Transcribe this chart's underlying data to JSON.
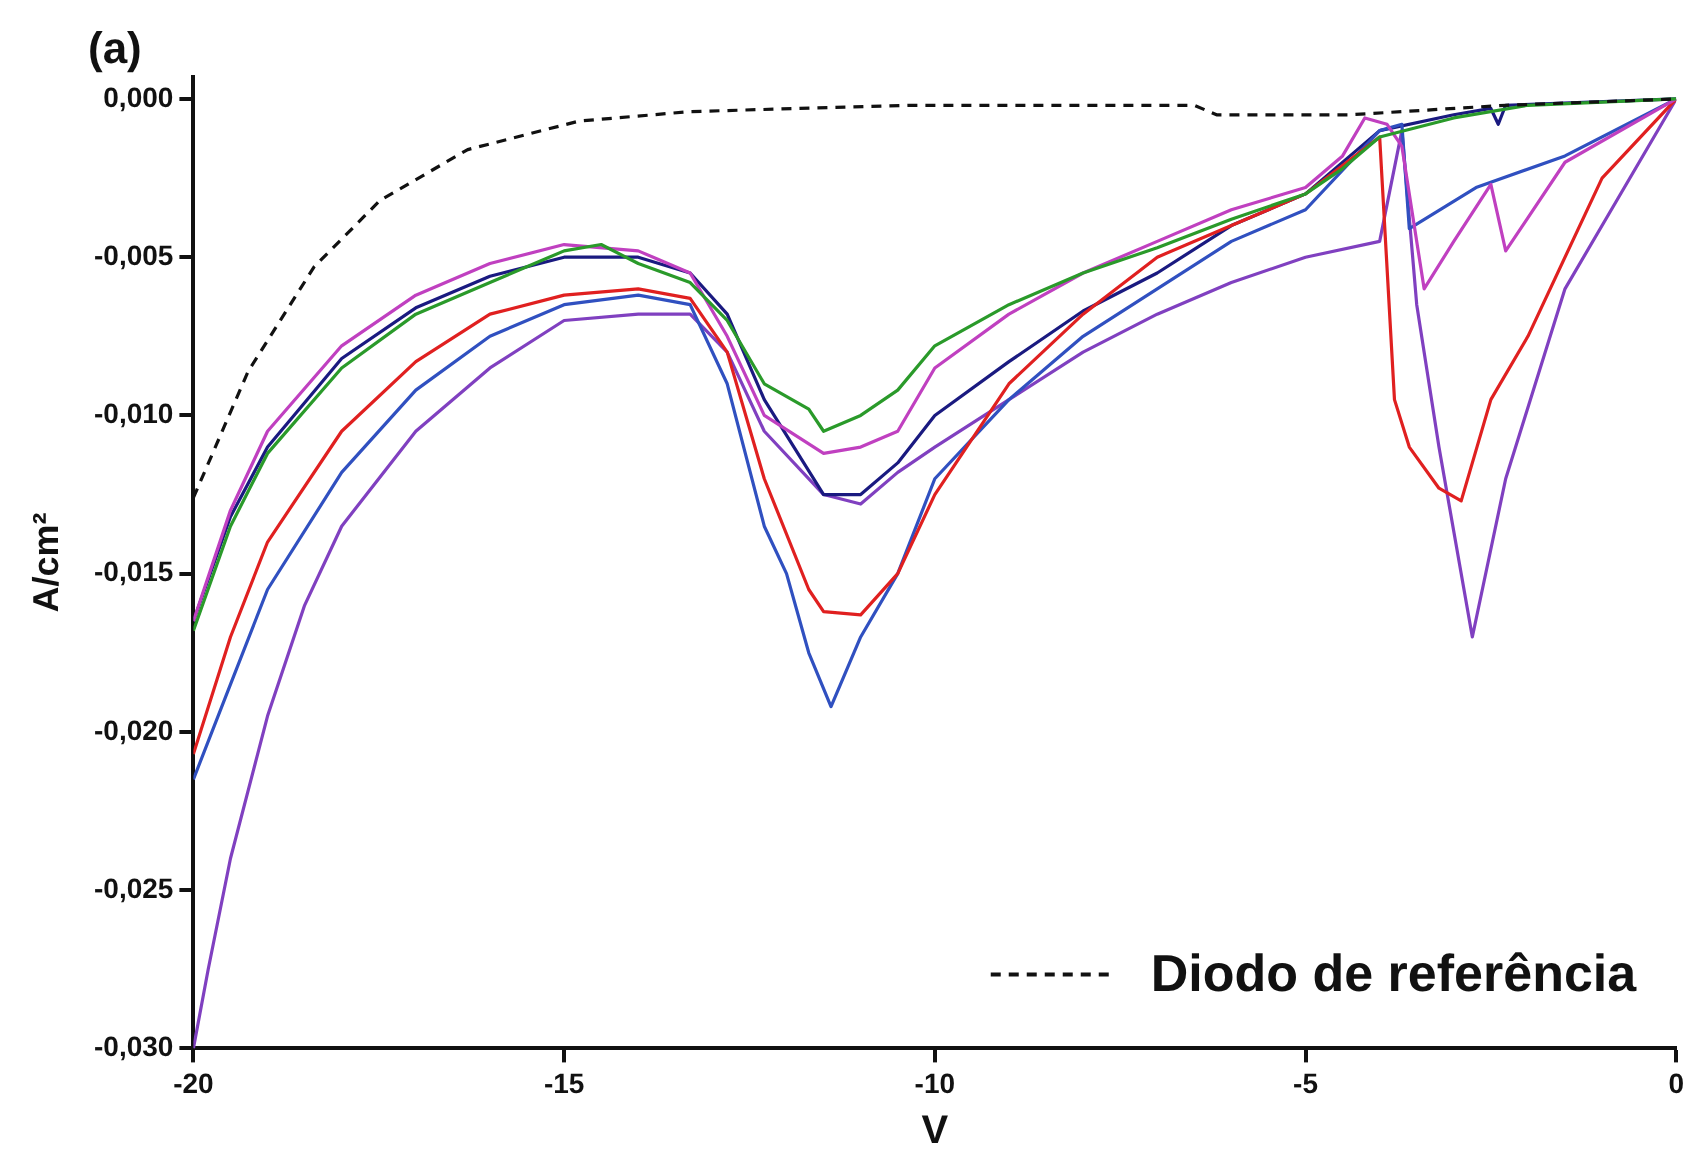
{
  "chart_data": {
    "type": "line",
    "title": "(a)",
    "xlabel": "V",
    "ylabel": "A/cm²",
    "xlim": [
      -20,
      0
    ],
    "ylim": [
      -0.03,
      0.0007
    ],
    "xticks": [
      -20,
      -15,
      -10,
      -5,
      0
    ],
    "yticks": [
      {
        "value": 0,
        "label": "0,000"
      },
      {
        "value": -0.005,
        "label": "-0,005"
      },
      {
        "value": -0.01,
        "label": "-0,010"
      },
      {
        "value": -0.015,
        "label": "-0,015"
      },
      {
        "value": -0.02,
        "label": "-0,020"
      },
      {
        "value": -0.025,
        "label": "-0,025"
      },
      {
        "value": -0.03,
        "label": "-0,030"
      }
    ],
    "grid": false,
    "legend": "bottom right",
    "marker": "none",
    "series": [
      {
        "name": "Diodo de referência",
        "color": "#111111",
        "line_style": "dashed",
        "x": [
          -20,
          -19.26,
          -18.37,
          -17.48,
          -16.3,
          -14.8,
          -13.3,
          -10.35,
          -6.5,
          -6.2,
          -4.4,
          -2.3,
          0
        ],
        "values": [
          -0.0126,
          -0.0086,
          -0.0053,
          -0.0032,
          -0.0016,
          -0.0007,
          -0.0004,
          -0.0002,
          -0.0002,
          -0.0005,
          -0.0005,
          -0.0002,
          0
        ]
      },
      {
        "color": "#2a9a2a",
        "x": [
          -20,
          -19.5,
          -19,
          -18,
          -17,
          -16,
          -15,
          -14.5,
          -14,
          -13.3,
          -12.8,
          -12.3,
          -11.7,
          -11.5,
          -11,
          -10.5,
          -10,
          -9,
          -8,
          -7,
          -6,
          -5,
          -4.5,
          -4,
          -3,
          -2,
          0
        ],
        "values": [
          -0.0168,
          -0.0135,
          -0.0112,
          -0.0085,
          -0.0068,
          -0.0058,
          -0.0048,
          -0.0046,
          -0.0052,
          -0.0058,
          -0.007,
          -0.009,
          -0.0098,
          -0.0105,
          -0.01,
          -0.0092,
          -0.0078,
          -0.0065,
          -0.0055,
          -0.0047,
          -0.0038,
          -0.003,
          -0.0022,
          -0.0012,
          -0.0006,
          -0.0002,
          0
        ]
      },
      {
        "color": "#c040c0",
        "x": [
          -20,
          -19.5,
          -19,
          -18,
          -17,
          -16,
          -15,
          -14,
          -13.3,
          -12.8,
          -12.3,
          -11.5,
          -11,
          -10.5,
          -10,
          -9,
          -8,
          -7,
          -6,
          -5,
          -4.5,
          -4.2,
          -3.9,
          -3.7,
          -3.4,
          -3,
          -2.5,
          -2.3,
          -1.5,
          0
        ],
        "values": [
          -0.0165,
          -0.013,
          -0.0105,
          -0.0078,
          -0.0062,
          -0.0052,
          -0.0046,
          -0.0048,
          -0.0055,
          -0.0075,
          -0.01,
          -0.0112,
          -0.011,
          -0.0105,
          -0.0085,
          -0.0068,
          -0.0055,
          -0.0045,
          -0.0035,
          -0.0028,
          -0.0018,
          -0.0006,
          -0.0008,
          -0.0015,
          -0.006,
          -0.0045,
          -0.0027,
          -0.0048,
          -0.002,
          0
        ]
      },
      {
        "color": "#e02020",
        "x": [
          -20,
          -19.5,
          -19,
          -18,
          -17,
          -16,
          -15,
          -14,
          -13.3,
          -12.8,
          -12.3,
          -11.7,
          -11.5,
          -11,
          -10.5,
          -10,
          -9,
          -8,
          -7,
          -6,
          -5,
          -4,
          -3.8,
          -3.6,
          -3.2,
          -2.9,
          -2.5,
          -2,
          -1,
          0
        ],
        "values": [
          -0.0207,
          -0.017,
          -0.014,
          -0.0105,
          -0.0083,
          -0.0068,
          -0.0062,
          -0.006,
          -0.0063,
          -0.008,
          -0.012,
          -0.0155,
          -0.0162,
          -0.0163,
          -0.015,
          -0.0125,
          -0.009,
          -0.0068,
          -0.005,
          -0.004,
          -0.003,
          -0.0012,
          -0.0095,
          -0.011,
          -0.0123,
          -0.0127,
          -0.0095,
          -0.0075,
          -0.0025,
          0
        ]
      },
      {
        "color": "#3050c0",
        "x": [
          -20,
          -19.5,
          -19,
          -18,
          -17,
          -16,
          -15,
          -14,
          -13.3,
          -12.8,
          -12.3,
          -12,
          -11.7,
          -11.4,
          -11,
          -10.5,
          -10,
          -9,
          -8,
          -7,
          -6,
          -5,
          -4,
          -3.7,
          -3.6,
          -2.7,
          -1.5,
          0
        ],
        "values": [
          -0.0215,
          -0.0185,
          -0.0155,
          -0.0118,
          -0.0092,
          -0.0075,
          -0.0065,
          -0.0062,
          -0.0065,
          -0.009,
          -0.0135,
          -0.015,
          -0.0175,
          -0.0192,
          -0.017,
          -0.015,
          -0.012,
          -0.0095,
          -0.0075,
          -0.006,
          -0.0045,
          -0.0035,
          -0.001,
          -0.0008,
          -0.0041,
          -0.0028,
          -0.0018,
          0
        ]
      },
      {
        "color": "#1a1a80",
        "x": [
          -20,
          -19.5,
          -19,
          -18,
          -17,
          -16,
          -15,
          -14,
          -13.3,
          -12.8,
          -12.3,
          -11.5,
          -11,
          -10.5,
          -10,
          -9,
          -8,
          -7,
          -6,
          -5,
          -4,
          -3,
          -2.5,
          -2.4,
          -2.3,
          0
        ],
        "values": [
          -0.0165,
          -0.0132,
          -0.011,
          -0.0082,
          -0.0066,
          -0.0056,
          -0.005,
          -0.005,
          -0.0055,
          -0.0068,
          -0.0095,
          -0.0125,
          -0.0125,
          -0.0115,
          -0.01,
          -0.0083,
          -0.0067,
          -0.0055,
          -0.004,
          -0.003,
          -0.001,
          -0.0005,
          -0.0003,
          -0.0008,
          -0.0002,
          0
        ]
      },
      {
        "color": "#8040c0",
        "x": [
          -20,
          -19.8,
          -19.5,
          -19,
          -18.5,
          -18,
          -17,
          -16,
          -15,
          -14,
          -13.3,
          -12.8,
          -12.3,
          -11.5,
          -11,
          -10.5,
          -10,
          -9,
          -8,
          -7,
          -6,
          -5,
          -4,
          -3.7,
          -3.5,
          -3.2,
          -2.75,
          -2.3,
          -1.5,
          0
        ],
        "values": [
          -0.03,
          -0.0275,
          -0.024,
          -0.0195,
          -0.016,
          -0.0135,
          -0.0105,
          -0.0085,
          -0.007,
          -0.0068,
          -0.0068,
          -0.008,
          -0.0105,
          -0.0125,
          -0.0128,
          -0.0118,
          -0.011,
          -0.0095,
          -0.008,
          -0.0068,
          -0.0058,
          -0.005,
          -0.0045,
          -0.001,
          -0.0065,
          -0.011,
          -0.017,
          -0.012,
          -0.006,
          0
        ]
      }
    ]
  }
}
